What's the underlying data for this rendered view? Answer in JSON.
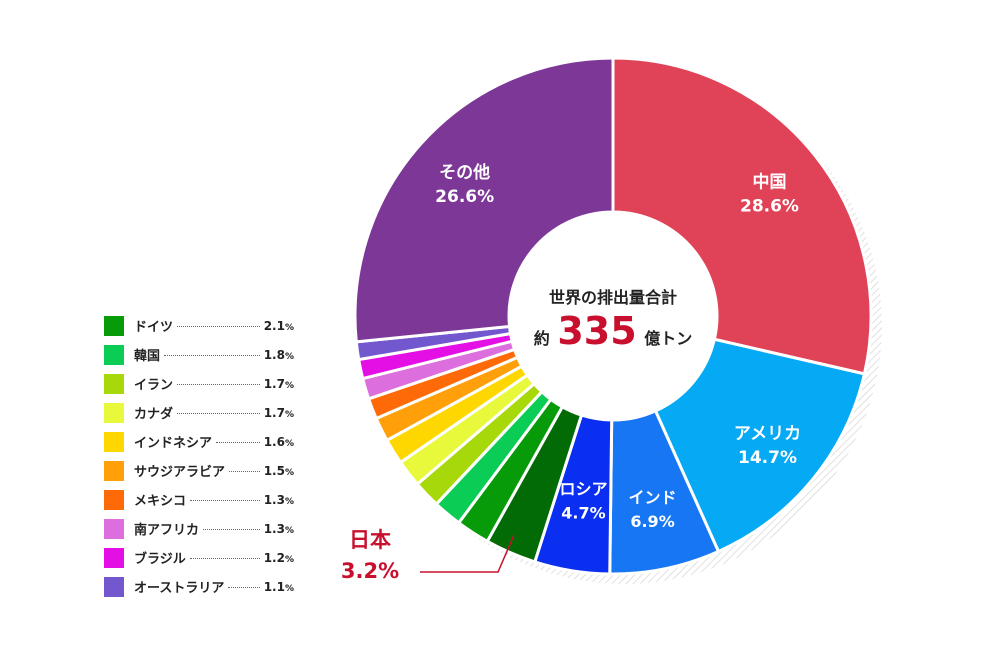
{
  "chart_data": {
    "type": "pie",
    "center_text": {
      "line1": "世界の排出量合計",
      "prefix": "約",
      "number": "335",
      "suffix": "億トン"
    },
    "slices": [
      {
        "name": "中国",
        "value": 28.6,
        "color": "#E04357",
        "label_color": "#ffffff"
      },
      {
        "name": "アメリカ",
        "value": 14.7,
        "color": "#05A9F4",
        "label_color": "#ffffff"
      },
      {
        "name": "インド",
        "value": 6.9,
        "color": "#1776F4",
        "label_color": "#ffffff"
      },
      {
        "name": "ロシア",
        "value": 4.7,
        "color": "#0B2FF0",
        "label_color": "#ffffff"
      },
      {
        "name": "日本",
        "value": 3.2,
        "color": "#036B05",
        "label_color": "#C8102E",
        "callout": true
      },
      {
        "name": "ドイツ",
        "value": 2.1,
        "color": "#079B0A"
      },
      {
        "name": "韓国",
        "value": 1.8,
        "color": "#0BCC55"
      },
      {
        "name": "イラン",
        "value": 1.7,
        "color": "#A6D80A"
      },
      {
        "name": "カナダ",
        "value": 1.7,
        "color": "#E8F83A"
      },
      {
        "name": "インドネシア",
        "value": 1.6,
        "color": "#FFD700"
      },
      {
        "name": "サウジアラビア",
        "value": 1.5,
        "color": "#FFA00A"
      },
      {
        "name": "メキシコ",
        "value": 1.3,
        "color": "#FF6A08"
      },
      {
        "name": "南アフリカ",
        "value": 1.3,
        "color": "#DD6EDE"
      },
      {
        "name": "ブラジル",
        "value": 1.2,
        "color": "#E40FE4"
      },
      {
        "name": "オーストラリア",
        "value": 1.1,
        "color": "#7257CF"
      },
      {
        "name": "その他",
        "value": 26.6,
        "color": "#7D3797",
        "label_color": "#ffffff"
      }
    ],
    "inside_labels": [
      {
        "name": "中国",
        "value_text": "28.6%"
      },
      {
        "name": "アメリカ",
        "value_text": "14.7%"
      },
      {
        "name": "インド",
        "value_text": "6.9%"
      },
      {
        "name": "ロシア",
        "value_text": "4.7%"
      },
      {
        "name": "その他",
        "value_text": "26.6%"
      }
    ],
    "callout": {
      "name": "日本",
      "value_text": "3.2%",
      "color": "#C8102E"
    },
    "legend": [
      {
        "name": "ドイツ",
        "value": "2.1",
        "unit": "%",
        "color": "#079B0A"
      },
      {
        "name": "韓国",
        "value": "1.8",
        "unit": "%",
        "color": "#0BCC55"
      },
      {
        "name": "イラン",
        "value": "1.7",
        "unit": "%",
        "color": "#A6D80A"
      },
      {
        "name": "カナダ",
        "value": "1.7",
        "unit": "%",
        "color": "#E8F83A"
      },
      {
        "name": "インドネシア",
        "value": "1.6",
        "unit": "%",
        "color": "#FFD700"
      },
      {
        "name": "サウジアラビア",
        "value": "1.5",
        "unit": "%",
        "color": "#FFA00A"
      },
      {
        "name": "メキシコ",
        "value": "1.3",
        "unit": "%",
        "color": "#FF6A08"
      },
      {
        "name": "南アフリカ",
        "value": "1.3",
        "unit": "%",
        "color": "#DD6EDE"
      },
      {
        "name": "ブラジル",
        "value": "1.2",
        "unit": "%",
        "color": "#E40FE4"
      },
      {
        "name": "オーストラリア",
        "value": "1.1",
        "unit": "%",
        "color": "#7257CF"
      }
    ],
    "center_number_color": "#C8102E"
  }
}
